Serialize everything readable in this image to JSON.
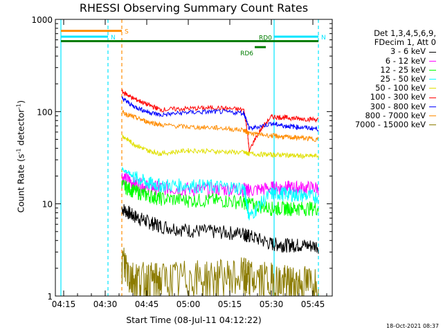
{
  "title": "RHESSI Observing Summary Count Rates",
  "xlabel": "Start Time (08-Jul-11 04:12:22)",
  "ylabel_main": "Count Rate (s",
  "ylabel_sup": "-1",
  "ylabel_tail": " detector",
  "ylabel_end": ")",
  "stamp": "18-Oct-2021 08:37",
  "legend_header": [
    "Det 1,3,4,5,6,9,",
    "FDecim 1, Att 0"
  ],
  "colors": {
    "axis": "#000000",
    "cyan": "#00e5ff",
    "orange": "#ff8c00",
    "green_flag": "#007d00"
  },
  "chart_data": {
    "type": "line",
    "title": "RHESSI Observing Summary Count Rates",
    "xlabel": "Start Time (08-Jul-11 04:12:22)",
    "ylabel": "Count Rate (s-1 detector-1)",
    "yscale": "log",
    "ylim": [
      1,
      1000
    ],
    "xlim_minutes": [
      4.2,
      4.94
    ],
    "x_ticks": [
      "04:15",
      "04:30",
      "04:45",
      "05:00",
      "05:15",
      "05:30",
      "05:45"
    ],
    "y_ticks": [
      "1",
      "10",
      "100",
      "1000"
    ],
    "grid": false,
    "legend_position": "right",
    "series": [
      {
        "name": "3 - 6 keV",
        "color": "#000000",
        "x": [
          "04:36",
          "04:40",
          "04:45",
          "04:50",
          "05:00",
          "05:10",
          "05:20",
          "05:22",
          "05:30",
          "05:35",
          "05:40",
          "05:47"
        ],
        "values": [
          9,
          7.5,
          6.5,
          5.8,
          5.2,
          5.0,
          4.8,
          4.5,
          3.7,
          3.6,
          3.6,
          3.5
        ]
      },
      {
        "name": "6 - 12 keV",
        "color": "#ff00ff",
        "x": [
          "04:36",
          "04:40",
          "04:45",
          "04:50",
          "05:00",
          "05:10",
          "05:20",
          "05:22",
          "05:30",
          "05:35",
          "05:40",
          "05:47"
        ],
        "values": [
          20,
          17,
          15.5,
          15,
          14.5,
          14.5,
          14.5,
          14,
          15,
          15,
          15,
          15
        ]
      },
      {
        "name": "12 - 25 keV",
        "color": "#00ff00",
        "x": [
          "04:36",
          "04:40",
          "04:45",
          "04:50",
          "05:00",
          "05:10",
          "05:20",
          "05:22",
          "05:30",
          "05:35",
          "05:40",
          "05:47"
        ],
        "values": [
          16,
          14,
          12.5,
          11.5,
          11,
          11,
          10.5,
          10,
          9,
          9,
          9,
          9
        ]
      },
      {
        "name": "25 - 50 keV",
        "color": "#00ffff",
        "x": [
          "04:36",
          "04:40",
          "04:45",
          "04:50",
          "05:00",
          "05:10",
          "05:20",
          "05:22",
          "05:30",
          "05:35",
          "05:40",
          "05:47"
        ],
        "values": [
          24,
          20,
          17,
          16,
          16,
          15.5,
          15,
          7,
          13,
          13,
          12.5,
          12
        ]
      },
      {
        "name": "50 - 100 keV",
        "color": "#e0e000",
        "x": [
          "04:36",
          "04:40",
          "04:45",
          "04:50",
          "05:00",
          "05:10",
          "05:20",
          "05:22",
          "05:30",
          "05:35",
          "05:40",
          "05:47"
        ],
        "values": [
          55,
          45,
          38,
          35,
          38,
          37,
          36,
          35,
          34,
          34,
          33,
          33
        ]
      },
      {
        "name": "100 - 300 keV",
        "color": "#ff0000",
        "x": [
          "04:36",
          "04:40",
          "04:45",
          "04:50",
          "05:00",
          "05:10",
          "05:20",
          "05:22",
          "05:30",
          "05:35",
          "05:40",
          "05:47"
        ],
        "values": [
          165,
          140,
          120,
          105,
          108,
          110,
          105,
          37,
          88,
          86,
          84,
          82
        ]
      },
      {
        "name": "300 - 800 keV",
        "color": "#0000ff",
        "x": [
          "04:36",
          "04:40",
          "04:45",
          "04:50",
          "05:00",
          "05:10",
          "05:20",
          "05:22",
          "05:30",
          "05:35",
          "05:40",
          "05:47"
        ],
        "values": [
          140,
          115,
          100,
          92,
          98,
          100,
          97,
          65,
          74,
          70,
          68,
          65
        ]
      },
      {
        "name": "800 - 7000 keV",
        "color": "#ff8c00",
        "x": [
          "04:36",
          "04:40",
          "04:45",
          "04:50",
          "05:00",
          "05:10",
          "05:20",
          "05:22",
          "05:30",
          "05:35",
          "05:40",
          "05:47"
        ],
        "values": [
          98,
          88,
          78,
          72,
          68,
          67,
          63,
          58,
          55,
          53,
          52,
          50
        ]
      },
      {
        "name": "7000 - 15000 keV",
        "color": "#8b7b00",
        "x": [
          "04:36",
          "04:40",
          "04:45",
          "04:50",
          "05:00",
          "05:10",
          "05:20",
          "05:22",
          "05:30",
          "05:35",
          "05:40",
          "05:47"
        ],
        "values": [
          2.5,
          1.6,
          1.5,
          1.5,
          1.6,
          1.6,
          1.7,
          1.6,
          1.5,
          1.4,
          1.4,
          1.4
        ]
      }
    ],
    "flags": [
      {
        "label": "S",
        "color": "#ff8c00",
        "start": "04:14",
        "end": "04:36",
        "level": 750
      },
      {
        "label": "N",
        "color": "#00e5ff",
        "start": "04:14",
        "end": "04:31",
        "level": 650
      },
      {
        "label": "N",
        "color": "#00e5ff",
        "start": "05:31",
        "end": "05:47",
        "level": 650
      },
      {
        "label": "RD0",
        "color": "#007d00",
        "start": "04:14",
        "end": "05:47",
        "level": 580
      },
      {
        "label": "RD6",
        "color": "#007d00",
        "start": "05:24",
        "end": "05:28",
        "level": 500
      }
    ],
    "vertical_markers": [
      {
        "time": "04:14",
        "color": "#00e5ff",
        "style": "solid"
      },
      {
        "time": "04:31",
        "color": "#00e5ff",
        "style": "dashed"
      },
      {
        "time": "04:36",
        "color": "#ff8c00",
        "style": "dashed"
      },
      {
        "time": "05:31",
        "color": "#00e5ff",
        "style": "solid"
      },
      {
        "time": "05:47",
        "color": "#00e5ff",
        "style": "dashed"
      }
    ]
  }
}
